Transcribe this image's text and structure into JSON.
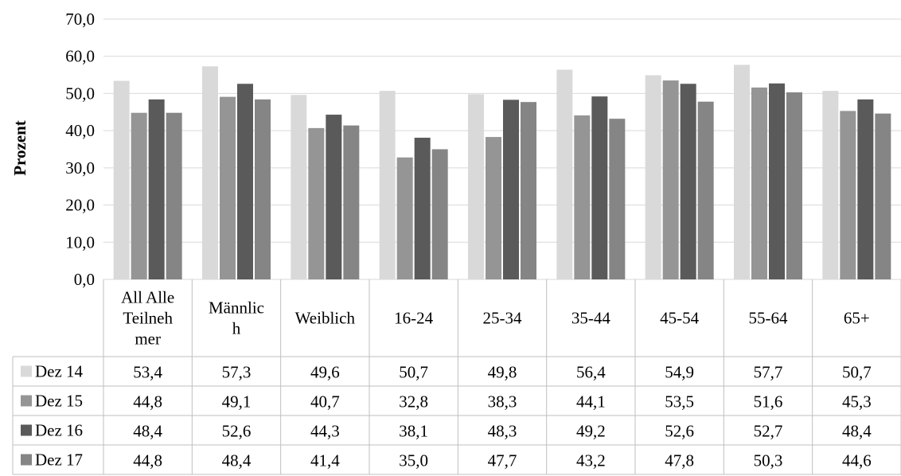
{
  "chart_data": {
    "type": "bar",
    "ylabel": "Prozent",
    "ylim": [
      0,
      70
    ],
    "y_ticks": [
      "0,0",
      "10,0",
      "20,0",
      "30,0",
      "40,0",
      "50,0",
      "60,0",
      "70,0"
    ],
    "grid": true,
    "categories": [
      [
        "All Alle",
        "Teilneh",
        "mer"
      ],
      [
        "Männlic",
        "h"
      ],
      [
        "Weiblich"
      ],
      [
        "16-24"
      ],
      [
        "25-34"
      ],
      [
        "35-44"
      ],
      [
        "45-54"
      ],
      [
        "55-64"
      ],
      [
        "65+"
      ]
    ],
    "series": [
      {
        "name": "Dez 14",
        "color": "#d9d9d9",
        "values": [
          53.4,
          57.3,
          49.6,
          50.7,
          49.8,
          56.4,
          54.9,
          57.7,
          50.7
        ],
        "labels": [
          "53,4",
          "57,3",
          "49,6",
          "50,7",
          "49,8",
          "56,4",
          "54,9",
          "57,7",
          "50,7"
        ]
      },
      {
        "name": "Dez 15",
        "color": "#959595",
        "values": [
          44.8,
          49.1,
          40.7,
          32.8,
          38.3,
          44.1,
          53.5,
          51.6,
          45.3
        ],
        "labels": [
          "44,8",
          "49,1",
          "40,7",
          "32,8",
          "38,3",
          "44,1",
          "53,5",
          "51,6",
          "45,3"
        ]
      },
      {
        "name": "Dez 16",
        "color": "#5a5a5a",
        "values": [
          48.4,
          52.6,
          44.3,
          38.1,
          48.3,
          49.2,
          52.6,
          52.7,
          48.4
        ],
        "labels": [
          "48,4",
          "52,6",
          "44,3",
          "38,1",
          "48,3",
          "49,2",
          "52,6",
          "52,7",
          "48,4"
        ]
      },
      {
        "name": "Dez 17",
        "color": "#858585",
        "values": [
          44.8,
          48.4,
          41.4,
          35.0,
          47.7,
          43.2,
          47.8,
          50.3,
          44.6
        ],
        "labels": [
          "44,8",
          "48,4",
          "41,4",
          "35,0",
          "47,7",
          "43,2",
          "47,8",
          "50,3",
          "44,6"
        ]
      }
    ]
  }
}
